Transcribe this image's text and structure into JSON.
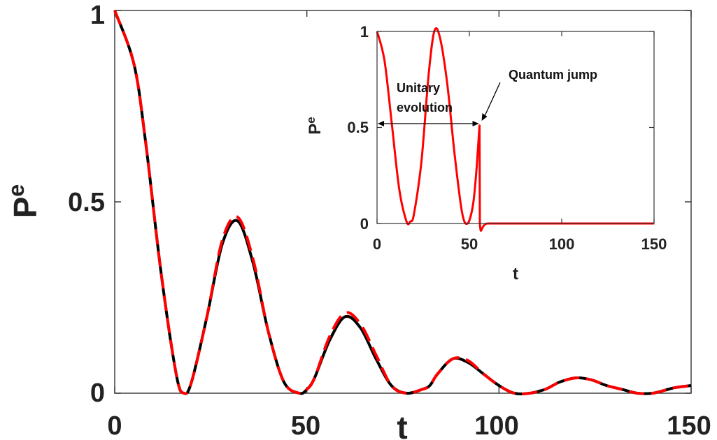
{
  "chart_data": [
    {
      "type": "line",
      "title": "",
      "xlabel": "t",
      "ylabel": "P",
      "ylabel_subscript": "e",
      "xlim": [
        0,
        150
      ],
      "ylim": [
        0,
        1
      ],
      "xticks": [
        "0",
        "50",
        "100",
        "150"
      ],
      "yticks": [
        "0",
        "0.5",
        "1"
      ],
      "grid": false,
      "series": [
        {
          "style": "solid",
          "color": "#000000",
          "x": [
            0,
            5,
            8,
            12,
            16,
            18,
            20,
            24,
            28,
            32,
            36,
            40,
            44,
            48,
            50,
            52,
            56,
            60,
            64,
            68,
            72,
            76,
            80,
            82,
            84,
            88,
            92,
            96,
            100,
            104,
            108,
            112,
            114,
            116,
            120,
            124,
            128,
            132,
            136,
            140,
            144,
            146,
            150
          ],
          "y": [
            1.0,
            0.86,
            0.66,
            0.32,
            0.05,
            0.0,
            0.03,
            0.2,
            0.39,
            0.45,
            0.34,
            0.16,
            0.03,
            0.0,
            0.01,
            0.04,
            0.14,
            0.2,
            0.17,
            0.09,
            0.02,
            0.0,
            0.01,
            0.02,
            0.05,
            0.09,
            0.08,
            0.05,
            0.02,
            0.0,
            0.0,
            0.01,
            0.02,
            0.03,
            0.04,
            0.035,
            0.02,
            0.01,
            0.0,
            0.0,
            0.01,
            0.015,
            0.02
          ]
        },
        {
          "style": "dashed",
          "color": "#ff0000",
          "x": [
            0,
            5,
            8,
            12,
            16,
            18,
            20,
            24,
            28,
            32,
            36,
            40,
            44,
            48,
            50,
            52,
            56,
            60,
            64,
            68,
            72,
            76,
            80,
            82,
            84,
            88,
            92,
            96,
            100,
            104,
            108,
            112,
            114,
            116,
            120,
            124,
            128,
            132,
            136,
            140,
            144,
            146,
            150
          ],
          "y": [
            1.0,
            0.86,
            0.66,
            0.32,
            0.05,
            0.0,
            0.03,
            0.2,
            0.4,
            0.46,
            0.35,
            0.16,
            0.03,
            0.0,
            0.01,
            0.04,
            0.15,
            0.21,
            0.18,
            0.1,
            0.02,
            0.0,
            0.01,
            0.02,
            0.05,
            0.09,
            0.085,
            0.05,
            0.02,
            0.0,
            0.0,
            0.01,
            0.02,
            0.03,
            0.04,
            0.035,
            0.02,
            0.01,
            0.0,
            0.0,
            0.01,
            0.015,
            0.02
          ]
        }
      ]
    },
    {
      "type": "line",
      "title": "",
      "xlabel": "t",
      "ylabel": "P",
      "ylabel_subscript": "e",
      "xlim": [
        0,
        150
      ],
      "ylim": [
        0,
        1
      ],
      "xticks": [
        "0",
        "50",
        "100",
        "150"
      ],
      "yticks": [
        "0",
        "0.5",
        "1"
      ],
      "grid": false,
      "series": [
        {
          "style": "solid",
          "color": "#ff0000",
          "x": [
            0,
            4,
            8,
            12,
            16,
            18,
            20,
            24,
            28,
            31,
            34,
            38,
            42,
            46,
            49,
            52,
            54,
            55.5,
            55.7,
            60,
            80,
            100,
            120,
            150
          ],
          "y": [
            1.0,
            0.85,
            0.52,
            0.18,
            0.01,
            0.01,
            0.05,
            0.32,
            0.78,
            1.0,
            0.97,
            0.73,
            0.36,
            0.06,
            0.0,
            0.1,
            0.3,
            0.51,
            0.0,
            0.0,
            0.0,
            0.0,
            0.0,
            0.0
          ]
        }
      ],
      "annotations": [
        {
          "text_lines": [
            "Unitary",
            "evolution"
          ],
          "arrow": "double-headed horizontal arrow from t=0 to t=55.5 at P=0.52"
        },
        {
          "text": "Quantum jump",
          "arrow": "pointing to the jump at t=55.5"
        }
      ]
    }
  ]
}
